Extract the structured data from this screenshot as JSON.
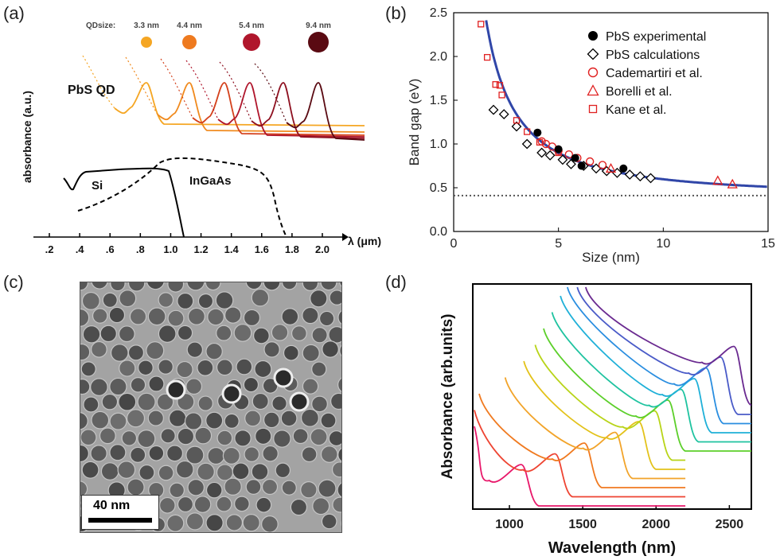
{
  "panels": {
    "a": "(a)",
    "b": "(b)",
    "c": "(c)",
    "d": "(d)"
  },
  "panel_a": {
    "qdsize_label": "QDsize:",
    "dots": [
      {
        "label": "3.3 nm",
        "color": "#f5a623"
      },
      {
        "label": "4.4 nm",
        "color": "#ee7a1f"
      },
      {
        "label": "5.4 nm",
        "color": "#b0162c"
      },
      {
        "label": "9.4 nm",
        "color": "#5a0a12"
      }
    ],
    "pbs_label": "PbS QD",
    "ylabel": "absorbance (a.u.)",
    "si_label": "Si",
    "ingaas_label": "InGaAs",
    "xaxis_label": "λ (μm)",
    "ticks": [
      ".2",
      ".4",
      ".6",
      ".8",
      "1.0",
      "1.2",
      "1.4",
      "1.6",
      "1.8",
      "2.0"
    ]
  },
  "chart_data": [
    {
      "type": "scatter",
      "xlabel": "Size (nm)",
      "ylabel": "Band gap (eV)",
      "xlim": [
        0,
        15
      ],
      "ylim": [
        0,
        2.5
      ],
      "xticks": [
        "0",
        "5",
        "10",
        "15"
      ],
      "yticks": [
        "0.0",
        "0.5",
        "1.0",
        "1.5",
        "2.0",
        "2.5"
      ],
      "legend_position": "top-right",
      "bulk_line_y": 0.41,
      "series": [
        {
          "name": "PbS experimental",
          "marker": "filled-circle",
          "color": "#000000",
          "x": [
            4.0,
            5.0,
            5.8,
            6.1,
            8.1
          ],
          "y": [
            1.13,
            0.94,
            0.84,
            0.75,
            0.72
          ]
        },
        {
          "name": "PbS calculations",
          "marker": "diamond",
          "color": "#000000",
          "x": [
            1.9,
            2.4,
            3.0,
            3.5,
            4.2,
            4.6,
            5.2,
            5.6,
            6.2,
            6.8,
            7.3,
            7.8,
            8.4,
            8.9,
            9.4
          ],
          "y": [
            1.39,
            1.34,
            1.2,
            1.0,
            0.9,
            0.87,
            0.82,
            0.77,
            0.75,
            0.72,
            0.69,
            0.67,
            0.65,
            0.63,
            0.61
          ]
        },
        {
          "name": "Cademartiri et al.",
          "marker": "circle",
          "color": "#e02020",
          "x": [
            4.2,
            4.4,
            4.7,
            5.0,
            5.5,
            5.9,
            6.5,
            7.1
          ],
          "y": [
            1.03,
            1.0,
            0.97,
            0.92,
            0.88,
            0.84,
            0.8,
            0.76
          ]
        },
        {
          "name": "Borelli et al.",
          "marker": "triangle",
          "color": "#e02020",
          "x": [
            7.5,
            12.6,
            13.3
          ],
          "y": [
            0.72,
            0.58,
            0.54
          ]
        },
        {
          "name": "Kane et al.",
          "marker": "square",
          "color": "#e02020",
          "x": [
            1.3,
            1.6,
            2.0,
            2.2,
            2.3,
            3.0,
            3.5,
            4.1,
            5.0
          ],
          "y": [
            2.37,
            1.99,
            1.68,
            1.67,
            1.56,
            1.27,
            1.14,
            1.02,
            0.9
          ]
        }
      ],
      "fit_curve_color": "#3046a8"
    },
    {
      "type": "line",
      "xlabel": "Wavelength (nm)",
      "ylabel": "Absorbance (arb.units)",
      "xlim": [
        750,
        2650
      ],
      "xticks": [
        "1000",
        "1500",
        "2000",
        "2500"
      ],
      "series": [
        {
          "color": "#e8186a",
          "peak": 1080,
          "end": 2200
        },
        {
          "color": "#ee4432",
          "peak": 1310,
          "end": 2200
        },
        {
          "color": "#f07a20",
          "peak": 1510,
          "end": 2200
        },
        {
          "color": "#f2a42a",
          "peak": 1720,
          "end": 2200
        },
        {
          "color": "#e3c21a",
          "peak": 1880,
          "end": 2200
        },
        {
          "color": "#b8d418",
          "peak": 1990,
          "end": 2200
        },
        {
          "color": "#5ccf2a",
          "peak": 2080,
          "end": 2650
        },
        {
          "color": "#1fc3a0",
          "peak": 2170,
          "end": 2650
        },
        {
          "color": "#1fb0d8",
          "peak": 2260,
          "end": 2650
        },
        {
          "color": "#2a8ee0",
          "peak": 2340,
          "end": 2650
        },
        {
          "color": "#4a5bc8",
          "peak": 2440,
          "end": 2650
        },
        {
          "color": "#6a2a90",
          "peak": 2530,
          "end": 2650
        }
      ]
    }
  ],
  "panel_c": {
    "scale_label": "40 nm"
  }
}
